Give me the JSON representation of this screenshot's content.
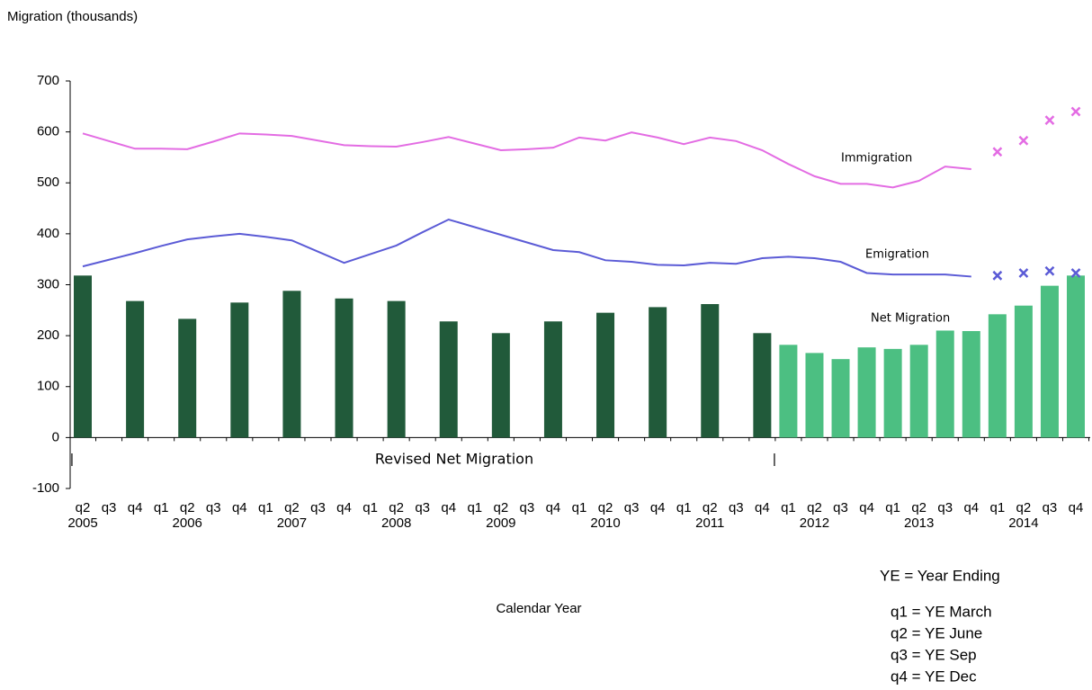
{
  "chart_data": {
    "type": "bar",
    "title": "Migration (thousands)",
    "x_label": "Calendar Year",
    "categories": [
      "q2",
      "q3",
      "q4",
      "q1",
      "q2",
      "q3",
      "q4",
      "q1",
      "q2",
      "q3",
      "q4",
      "q1",
      "q2",
      "q3",
      "q4",
      "q1",
      "q2",
      "q3",
      "q4",
      "q1",
      "q2",
      "q3",
      "q4",
      "q1",
      "q2",
      "q3",
      "q4",
      "q1",
      "q2",
      "q3",
      "q4",
      "q1",
      "q2",
      "q3",
      "q4",
      "q1",
      "q2",
      "q3",
      "q4"
    ],
    "years": [
      "2005",
      "2006",
      "2007",
      "2008",
      "2009",
      "2010",
      "2011",
      "2012",
      "2013",
      "2014"
    ],
    "ylim": [
      -100,
      700
    ],
    "yticks": [
      -100,
      0,
      100,
      200,
      300,
      400,
      500,
      600,
      700
    ],
    "series": [
      {
        "name": "Revised Net Migration",
        "type": "bar",
        "color": "#215a3a",
        "values": [
          318,
          null,
          268,
          null,
          233,
          null,
          265,
          null,
          288,
          null,
          273,
          null,
          268,
          null,
          228,
          null,
          205,
          null,
          228,
          null,
          245,
          null,
          256,
          null,
          262,
          null,
          205,
          null,
          null,
          null,
          null,
          null,
          null,
          null,
          null,
          null,
          null,
          null,
          null
        ]
      },
      {
        "name": "Net Migration",
        "type": "bar",
        "color": "#4cbf82",
        "values": [
          null,
          null,
          null,
          null,
          null,
          null,
          null,
          null,
          null,
          null,
          null,
          null,
          null,
          null,
          null,
          null,
          null,
          null,
          null,
          null,
          null,
          null,
          null,
          null,
          null,
          null,
          null,
          182,
          166,
          154,
          177,
          174,
          182,
          210,
          209,
          242,
          259,
          298,
          318
        ]
      },
      {
        "name": "Immigration",
        "type": "line",
        "color": "#e36ce3",
        "values": [
          597,
          582,
          567,
          567,
          566,
          581,
          597,
          595,
          592,
          583,
          574,
          572,
          571,
          580,
          590,
          577,
          564,
          566,
          569,
          589,
          583,
          599,
          589,
          576,
          589,
          582,
          564,
          537,
          513,
          498,
          498,
          491,
          504,
          532,
          527,
          null,
          null,
          null,
          null
        ]
      },
      {
        "name": "Emigration",
        "type": "line",
        "color": "#5b5bd6",
        "values": [
          336,
          349,
          362,
          376,
          389,
          395,
          400,
          394,
          387,
          365,
          343,
          360,
          377,
          403,
          428,
          413,
          398,
          383,
          368,
          364,
          348,
          345,
          339,
          338,
          343,
          341,
          352,
          355,
          352,
          345,
          323,
          320,
          320,
          320,
          316,
          null,
          null,
          null,
          null
        ]
      },
      {
        "type": "cross",
        "color": "#e36ce3",
        "values": [
          null,
          null,
          null,
          null,
          null,
          null,
          null,
          null,
          null,
          null,
          null,
          null,
          null,
          null,
          null,
          null,
          null,
          null,
          null,
          null,
          null,
          null,
          null,
          null,
          null,
          null,
          null,
          null,
          null,
          null,
          null,
          null,
          null,
          null,
          null,
          561,
          583,
          623,
          640
        ]
      },
      {
        "type": "cross",
        "color": "#5b5bd6",
        "values": [
          null,
          null,
          null,
          null,
          null,
          null,
          null,
          null,
          null,
          null,
          null,
          null,
          null,
          null,
          null,
          null,
          null,
          null,
          null,
          null,
          null,
          null,
          null,
          null,
          null,
          null,
          null,
          null,
          null,
          null,
          null,
          null,
          null,
          null,
          null,
          318,
          323,
          327,
          323
        ]
      }
    ],
    "notes": [
      "YE = Year Ending",
      "q1 = YE March",
      "q2 = YE June",
      "q3 = YE Sep",
      "q4 = YE Dec"
    ]
  }
}
